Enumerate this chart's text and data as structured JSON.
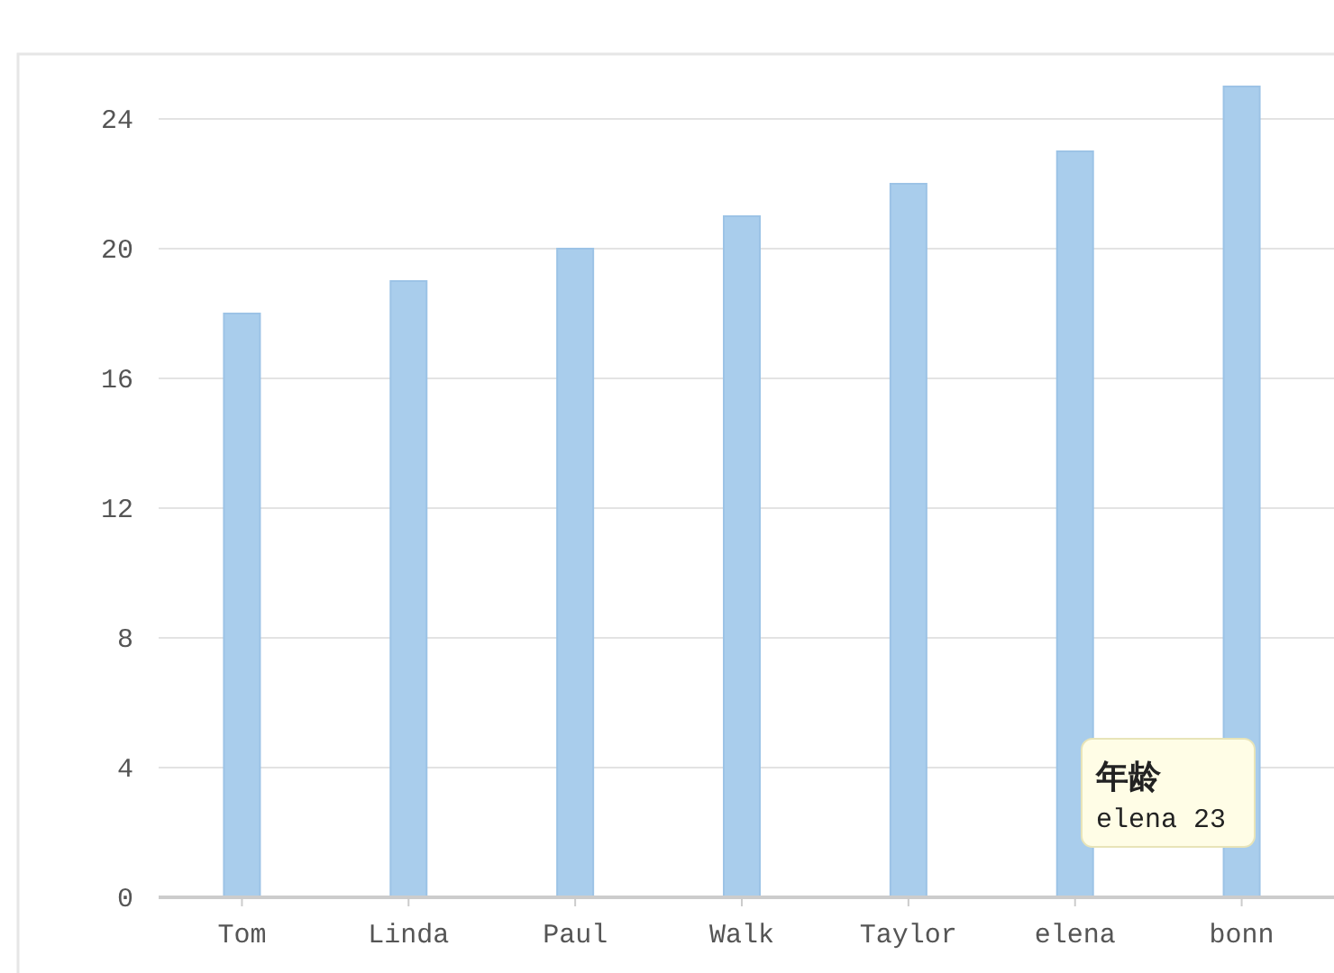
{
  "chart_data": {
    "type": "bar",
    "categories": [
      "Tom",
      "Linda",
      "Paul",
      "Walk",
      "Taylor",
      "elena",
      "bonn"
    ],
    "series": [
      {
        "name": "年龄",
        "color": "#a9cdec",
        "values": [
          18,
          19,
          20,
          21,
          22,
          23,
          25
        ]
      }
    ],
    "ylim": [
      0,
      26
    ],
    "yticks": [
      0,
      4,
      8,
      12,
      16,
      20,
      24
    ],
    "grid": "y",
    "annotations": [
      "elena 23"
    ]
  }
}
